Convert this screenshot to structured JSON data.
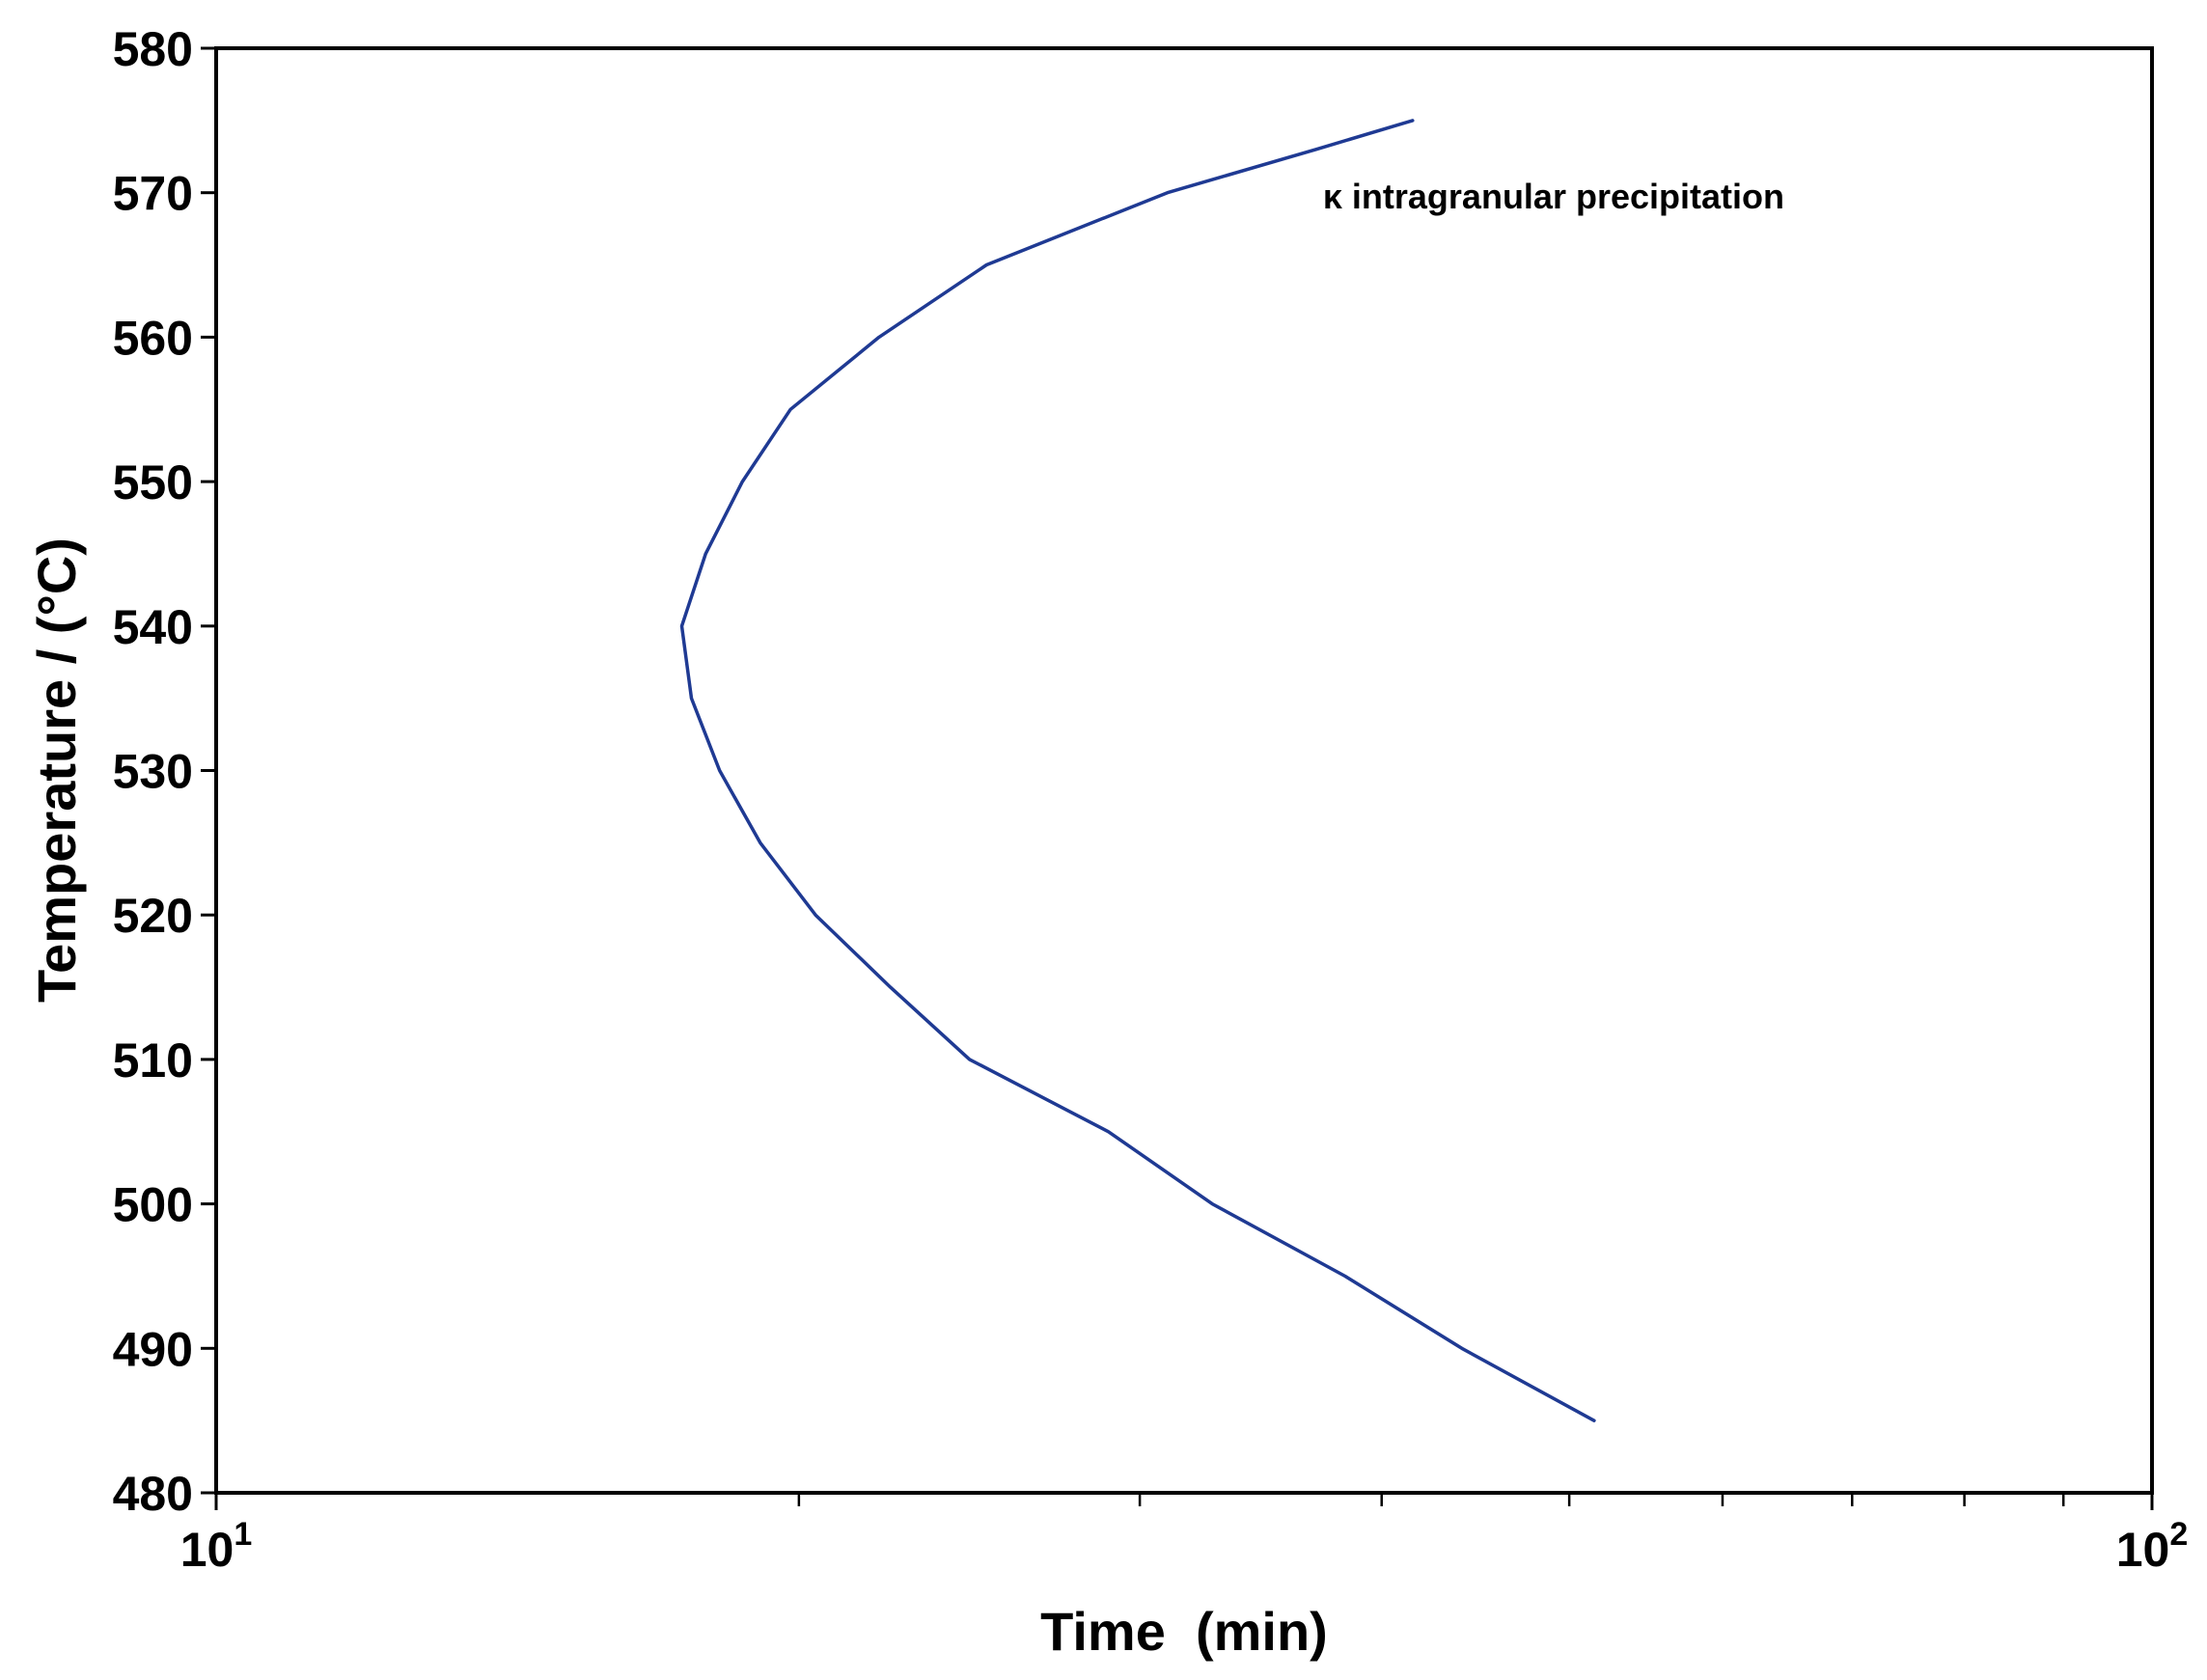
{
  "chart_data": {
    "type": "line",
    "title": "",
    "xlabel": "Time  (min)",
    "ylabel": "Temperature / (°C)",
    "x_scale": "log",
    "xlim": [
      10,
      100
    ],
    "ylim": [
      480,
      580
    ],
    "grid": false,
    "legend": "none",
    "x_ticks": [
      {
        "value": 10,
        "base": "10",
        "exp": "1"
      },
      {
        "value": 100,
        "base": "10",
        "exp": "2"
      }
    ],
    "x_minor_ticks": [
      20,
      30,
      40,
      50,
      60,
      70,
      80,
      90
    ],
    "y_ticks": [
      {
        "value": 480,
        "label": "480"
      },
      {
        "value": 490,
        "label": "490"
      },
      {
        "value": 500,
        "label": "500"
      },
      {
        "value": 510,
        "label": "510"
      },
      {
        "value": 520,
        "label": "520"
      },
      {
        "value": 530,
        "label": "530"
      },
      {
        "value": 540,
        "label": "540"
      },
      {
        "value": 550,
        "label": "550"
      },
      {
        "value": 560,
        "label": "560"
      },
      {
        "value": 570,
        "label": "570"
      },
      {
        "value": 580,
        "label": "580"
      }
    ],
    "series": [
      {
        "color": "#1f3a93",
        "points": [
          {
            "x": 51.5,
            "y": 485
          },
          {
            "x": 44.0,
            "y": 490
          },
          {
            "x": 38.3,
            "y": 495
          },
          {
            "x": 32.7,
            "y": 500
          },
          {
            "x": 28.9,
            "y": 505
          },
          {
            "x": 24.5,
            "y": 510
          },
          {
            "x": 22.3,
            "y": 515
          },
          {
            "x": 20.4,
            "y": 520
          },
          {
            "x": 19.1,
            "y": 525
          },
          {
            "x": 18.2,
            "y": 530
          },
          {
            "x": 17.6,
            "y": 535
          },
          {
            "x": 17.4,
            "y": 540
          },
          {
            "x": 17.9,
            "y": 545
          },
          {
            "x": 18.7,
            "y": 550
          },
          {
            "x": 19.8,
            "y": 555
          },
          {
            "x": 22.0,
            "y": 560
          },
          {
            "x": 25.0,
            "y": 565
          },
          {
            "x": 31.0,
            "y": 570
          },
          {
            "x": 37.0,
            "y": 573
          },
          {
            "x": 41.5,
            "y": 575
          }
        ]
      }
    ],
    "annotations": [
      {
        "text": "κ intragranular precipitation",
        "x": 37.3,
        "y": 569.7
      }
    ]
  }
}
